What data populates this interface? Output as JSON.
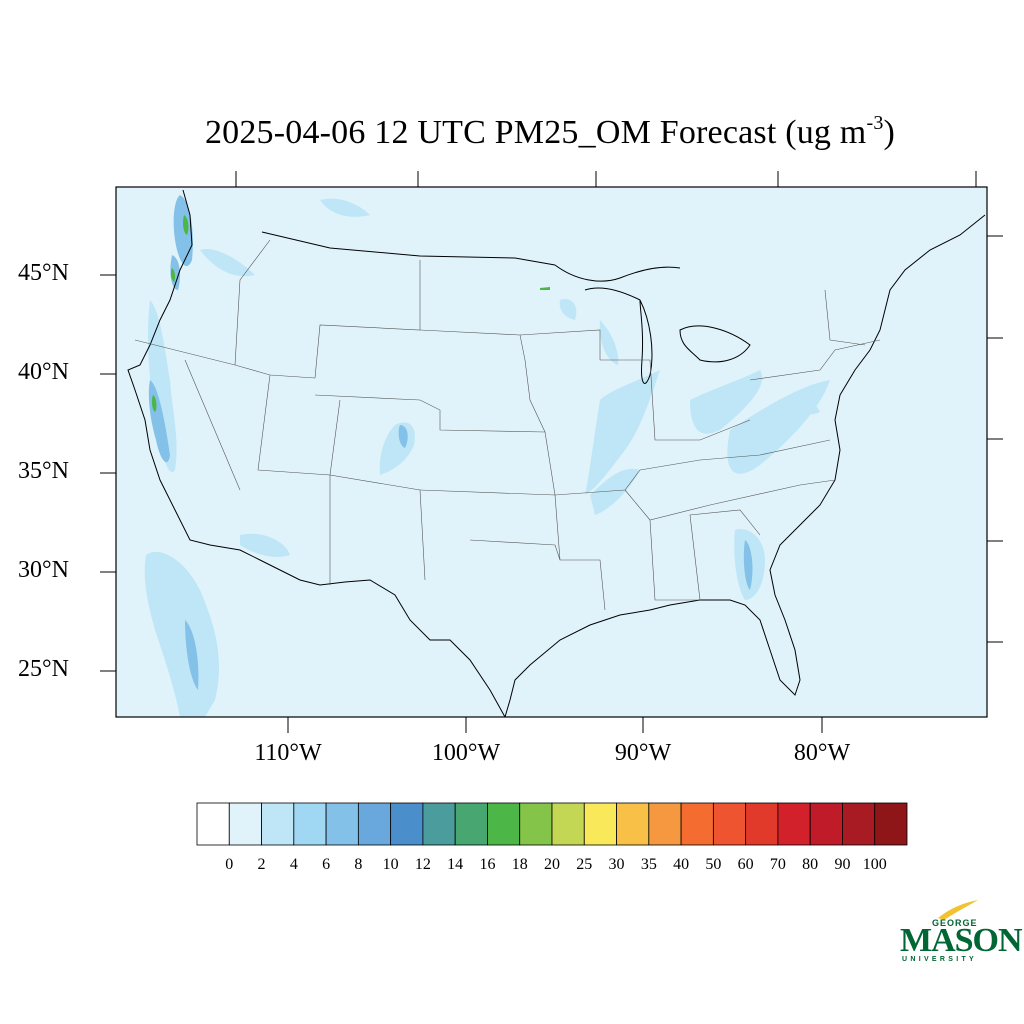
{
  "title": {
    "main": "2025-04-06 12 UTC PM25_OM Forecast (ug m",
    "exponent": "-3",
    "close": ")"
  },
  "lat_labels": [
    "45°N",
    "40°N",
    "35°N",
    "30°N",
    "25°N"
  ],
  "lon_labels": [
    "110°W",
    "100°W",
    "90°W",
    "80°W"
  ],
  "colorbar": {
    "labels": [
      "0",
      "2",
      "4",
      "6",
      "8",
      "10",
      "12",
      "14",
      "16",
      "18",
      "20",
      "25",
      "30",
      "35",
      "40",
      "50",
      "60",
      "70",
      "80",
      "90",
      "100"
    ],
    "colors": [
      "#ffffff",
      "#e0f3fb",
      "#bfe6f7",
      "#a0d8f4",
      "#84c1e8",
      "#68a8dc",
      "#4b8ecc",
      "#4a9d9c",
      "#48a771",
      "#4cb647",
      "#83c449",
      "#c4d755",
      "#f9e85a",
      "#f8c047",
      "#f6983f",
      "#f46c2f",
      "#ee5430",
      "#e1392a",
      "#d3212b",
      "#bf1b28",
      "#a81b23",
      "#8e1619"
    ]
  },
  "background_color": "#e0f3fb",
  "logo": {
    "top": "GEORGE",
    "main": "MASON",
    "bottom": "UNIVERSITY"
  }
}
